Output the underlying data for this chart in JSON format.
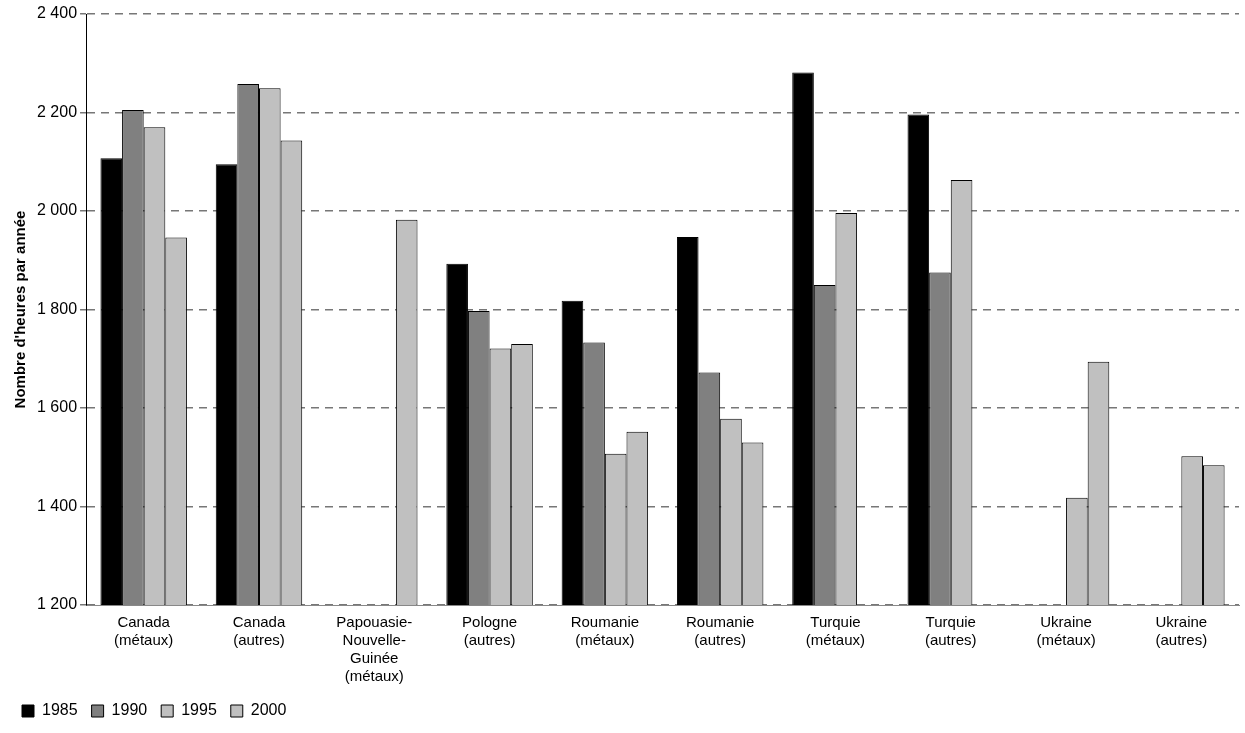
{
  "chart_data": {
    "type": "bar",
    "ylabel": "Nombre d'heures par année",
    "categories": [
      "Canada (métaux)",
      "Canada (autres)",
      "Papouasie-Nouvelle-Guinée (métaux)",
      "Pologne (autres)",
      "Roumanie (métaux)",
      "Roumanie (autres)",
      "Turquie (métaux)",
      "Turquie (autres)",
      "Ukraine (métaux)",
      "Ukraine (autres)"
    ],
    "series": [
      {
        "name": "1985",
        "color": "#000000",
        "values": [
          2107,
          2095,
          null,
          1893,
          1818,
          1947,
          2281,
          2196,
          null,
          null
        ]
      },
      {
        "name": "1990",
        "color": "#808080",
        "values": [
          2205,
          2258,
          null,
          1797,
          1733,
          1672,
          1850,
          1875,
          null,
          null
        ]
      },
      {
        "name": "1995",
        "color": "#c0c0c0",
        "values": [
          2170,
          2249,
          null,
          1721,
          1507,
          1578,
          1996,
          2063,
          1418,
          1502
        ]
      },
      {
        "name": "2000",
        "color": "#c0c0c0",
        "values": [
          1946,
          2143,
          1982,
          1730,
          1552,
          1530,
          null,
          null,
          1694,
          1484
        ]
      }
    ],
    "ylim": [
      1200,
      2400
    ],
    "yticks": [
      {
        "value": 1200,
        "label": "1 200"
      },
      {
        "value": 1400,
        "label": "1 400"
      },
      {
        "value": 1600,
        "label": "1 600"
      },
      {
        "value": 1800,
        "label": "1 800"
      },
      {
        "value": 2000,
        "label": "2 000"
      },
      {
        "value": 2200,
        "label": "2 200"
      },
      {
        "value": 2400,
        "label": "2 400"
      }
    ],
    "grid": "y",
    "legend": "bottom left"
  }
}
